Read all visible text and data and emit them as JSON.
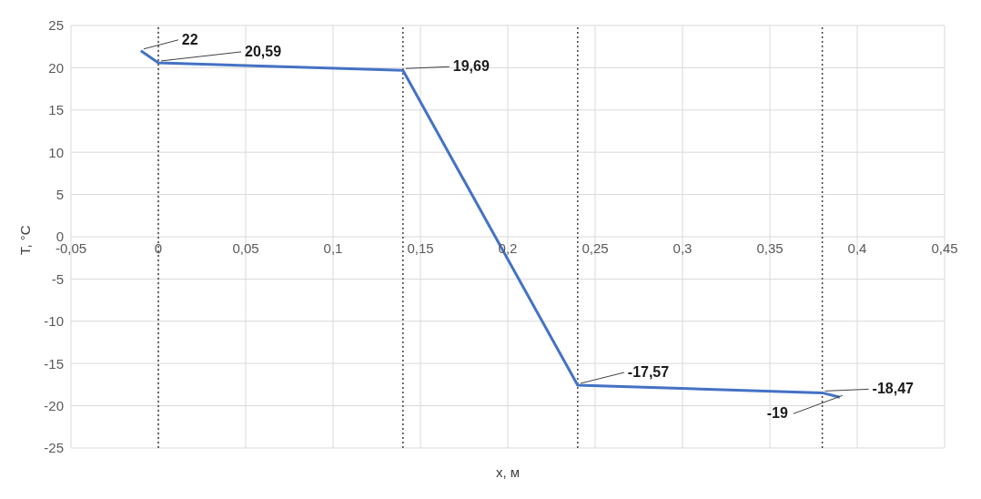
{
  "chart_data": {
    "type": "line",
    "xlabel": "x, м",
    "ylabel": "T, °C",
    "x": [
      -0.01,
      0,
      0.14,
      0.24,
      0.38,
      0.39
    ],
    "series": [
      {
        "color": "#4472c4",
        "values": [
          22,
          20.59,
          19.69,
          -17.57,
          -18.47,
          -19
        ]
      }
    ],
    "xlim": [
      -0.05,
      0.45
    ],
    "xticks": [
      {
        "value": -0.05,
        "label": "-0,05"
      },
      0,
      {
        "value": 0.05,
        "label": "0,05"
      },
      {
        "value": 0.1,
        "label": "0,1"
      },
      {
        "value": 0.15,
        "label": "0,15"
      },
      {
        "value": 0.2,
        "label": "0,2"
      },
      {
        "value": 0.25,
        "label": "0,25"
      },
      {
        "value": 0.3,
        "label": "0,3"
      },
      {
        "value": 0.35,
        "label": "0,35"
      },
      {
        "value": 0.4,
        "label": "0,4"
      },
      {
        "value": 0.45,
        "label": "0,45"
      }
    ],
    "ylim": [
      -25,
      25
    ],
    "yticks": [
      -25,
      -20,
      -15,
      -10,
      -5,
      0,
      5,
      10,
      15,
      20,
      25
    ],
    "grid": true,
    "marker": "none",
    "line_style": "solid",
    "ref_lines": [
      {
        "axis": "x",
        "value": 0,
        "color": "#404040",
        "line_style": "dotted"
      },
      {
        "axis": "x",
        "value": 0.14,
        "color": "#404040",
        "line_style": "dotted"
      },
      {
        "axis": "x",
        "value": 0.24,
        "color": "#404040",
        "line_style": "dotted"
      },
      {
        "axis": "x",
        "value": 0.38,
        "color": "#404040",
        "line_style": "dotted"
      }
    ],
    "annotations": [
      {
        "text": "22",
        "x": -0.01,
        "y": 22
      },
      {
        "text": "20,59",
        "x": 0,
        "y": 20.59
      },
      {
        "text": "19,69",
        "x": 0.14,
        "y": 19.69
      },
      {
        "text": "-17,57",
        "x": 0.24,
        "y": -17.57
      },
      {
        "text": "-18,47",
        "x": 0.38,
        "y": -18.47
      },
      {
        "text": "-19",
        "x": 0.39,
        "y": -19
      }
    ]
  }
}
